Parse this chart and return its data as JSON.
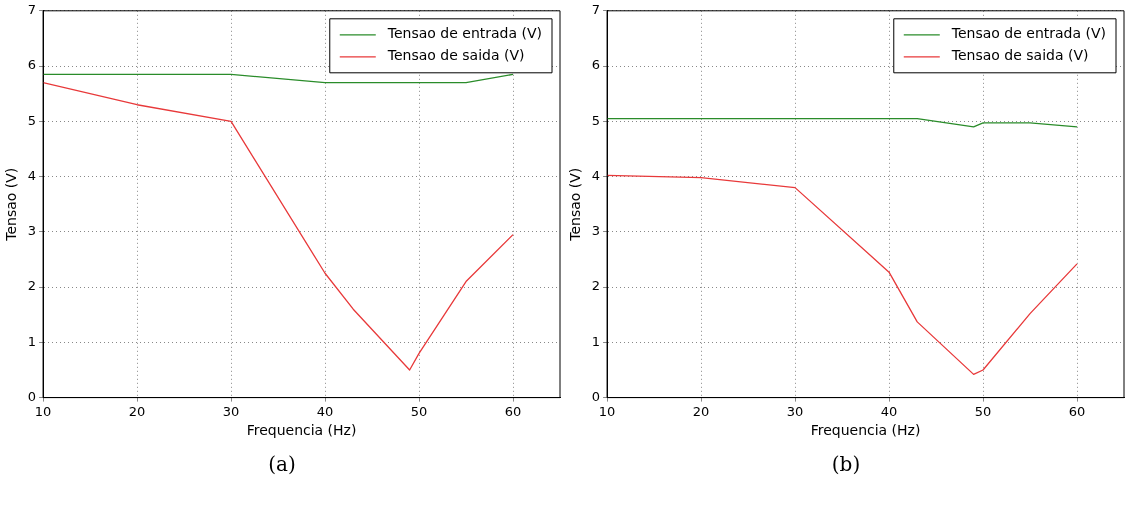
{
  "chart_data": [
    {
      "type": "line",
      "xlabel": "Frequencia (Hz)",
      "ylabel": "Tensao (V)",
      "annotations": [
        "(a)"
      ],
      "xlim": [
        10,
        65
      ],
      "xticks": [
        10,
        20,
        30,
        40,
        50,
        60
      ],
      "ylim": [
        0,
        7
      ],
      "yticks": [
        0,
        1,
        2,
        3,
        4,
        5,
        6,
        7
      ],
      "grid": true,
      "legend": "top right",
      "marker": "none",
      "line_style": "solid",
      "series": [
        {
          "name": "Tensao de entrada (V)",
          "color": "#2a8c2a",
          "x": [
            10,
            20,
            30,
            40,
            55,
            60
          ],
          "values": [
            5.85,
            5.85,
            5.85,
            5.7,
            5.7,
            5.85
          ]
        },
        {
          "name": "Tensao de saida (V)",
          "color": "#e8393a",
          "x": [
            10,
            20,
            30,
            40,
            43,
            49,
            50,
            55,
            60
          ],
          "values": [
            5.7,
            5.3,
            5.0,
            2.25,
            1.6,
            0.5,
            0.8,
            2.1,
            2.95
          ]
        }
      ]
    },
    {
      "type": "line",
      "xlabel": "Frequencia (Hz)",
      "ylabel": "Tensao (V)",
      "annotations": [
        "(b)"
      ],
      "xlim": [
        10,
        65
      ],
      "xticks": [
        10,
        20,
        30,
        40,
        50,
        60
      ],
      "ylim": [
        0,
        7
      ],
      "yticks": [
        0,
        1,
        2,
        3,
        4,
        5,
        6,
        7
      ],
      "grid": true,
      "legend": "top right",
      "marker": "none",
      "line_style": "solid",
      "series": [
        {
          "name": "Tensao de entrada (V)",
          "color": "#2a8c2a",
          "x": [
            10,
            20,
            30,
            40,
            43,
            49,
            50,
            55,
            60
          ],
          "values": [
            5.05,
            5.05,
            5.05,
            5.05,
            5.05,
            4.9,
            4.97,
            4.97,
            4.9
          ]
        },
        {
          "name": "Tensao de saida (V)",
          "color": "#e8393a",
          "x": [
            10,
            20,
            30,
            40,
            43,
            49,
            50,
            55,
            60
          ],
          "values": [
            4.02,
            3.98,
            3.8,
            2.27,
            1.37,
            0.42,
            0.5,
            1.52,
            2.42
          ]
        }
      ]
    }
  ]
}
